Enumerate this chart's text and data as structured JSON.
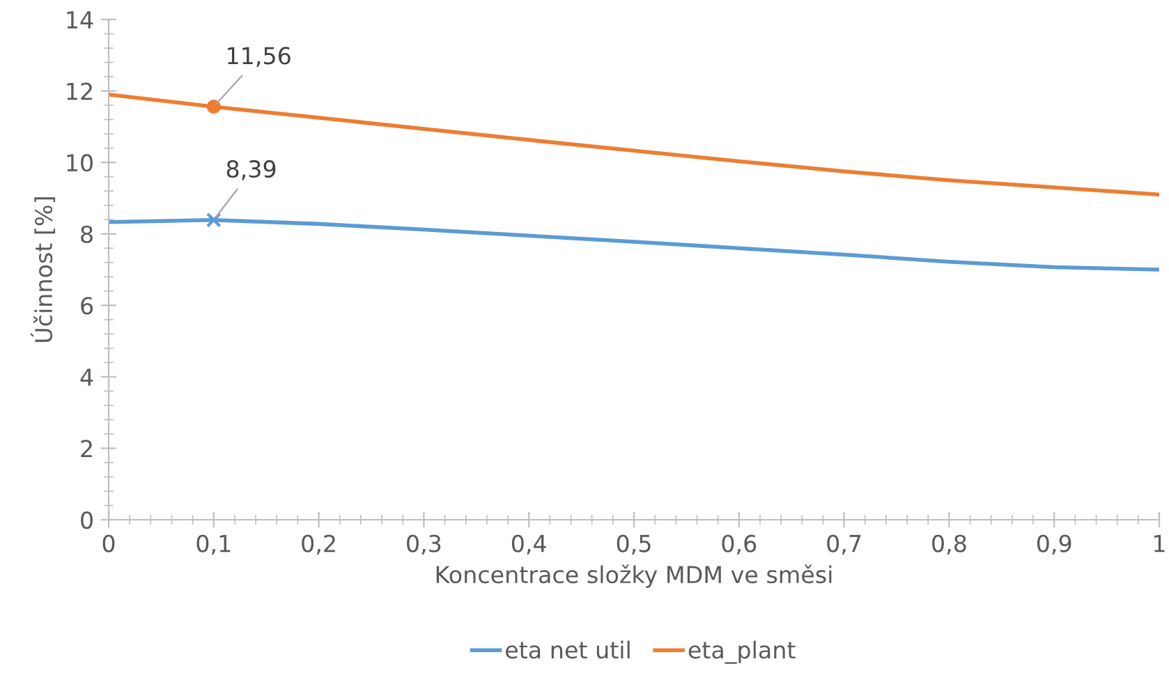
{
  "chart_data": {
    "type": "line",
    "xlabel": "Koncentrace složky MDM ve směsi",
    "ylabel": "Účinnost [%]",
    "x": [
      0,
      0.1,
      0.2,
      0.3,
      0.4,
      0.5,
      0.6,
      0.7,
      0.8,
      0.9,
      1
    ],
    "series": [
      {
        "name": "eta net util",
        "color": "#5b9bd5",
        "values": [
          8.33,
          8.39,
          8.28,
          8.12,
          7.95,
          7.78,
          7.6,
          7.42,
          7.22,
          7.07,
          7.0
        ]
      },
      {
        "name": "eta_plant",
        "color": "#ed7d31",
        "values": [
          11.9,
          11.56,
          11.25,
          10.94,
          10.63,
          10.33,
          10.03,
          9.75,
          9.5,
          9.3,
          9.1
        ]
      },
      {
        "type": "scatter",
        "x": [
          0.1
        ],
        "color": "#5b9bd5",
        "marker": "cross",
        "values": [
          8.39
        ]
      },
      {
        "type": "scatter",
        "x": [
          0.1
        ],
        "color": "#ed7d31",
        "marker": "circle",
        "values": [
          11.56
        ]
      }
    ],
    "annotations": [
      {
        "text": "8,39",
        "x": 0.1,
        "y": 8.39
      },
      {
        "text": "11,56",
        "x": 0.1,
        "y": 11.56
      }
    ],
    "xlim": [
      0,
      1
    ],
    "xticks": [
      {
        "value": 0,
        "label": "0"
      },
      {
        "value": 0.1,
        "label": "0,1"
      },
      {
        "value": 0.2,
        "label": "0,2"
      },
      {
        "value": 0.3,
        "label": "0,3"
      },
      {
        "value": 0.4,
        "label": "0,4"
      },
      {
        "value": 0.5,
        "label": "0,5"
      },
      {
        "value": 0.6,
        "label": "0,6"
      },
      {
        "value": 0.7,
        "label": "0,7"
      },
      {
        "value": 0.8,
        "label": "0,8"
      },
      {
        "value": 0.9,
        "label": "0,9"
      },
      {
        "value": 1,
        "label": "1"
      }
    ],
    "ylim": [
      0,
      14
    ],
    "yticks": [
      0,
      2,
      4,
      6,
      8,
      10,
      12,
      14
    ],
    "grid": false,
    "legend": "bottom",
    "marker": "none",
    "line_style": "solid"
  }
}
